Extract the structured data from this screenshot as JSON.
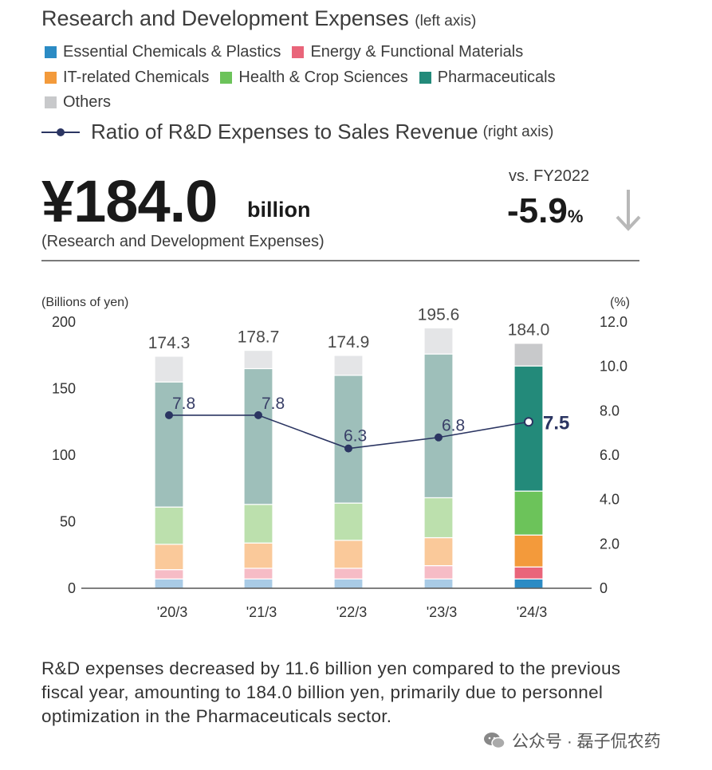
{
  "header": {
    "title": "Research and Development Expenses",
    "title_note": "(left axis)",
    "ratio_label": "Ratio of R&D Expenses to Sales Revenue",
    "ratio_note": "(right axis)"
  },
  "legend": [
    {
      "label": "Essential Chemicals & Plastics",
      "color": "#2b8bc4"
    },
    {
      "label": "Energy & Functional Materials",
      "color": "#e9657a"
    },
    {
      "label": "IT-related Chemicals",
      "color": "#f39a3b"
    },
    {
      "label": "Health & Crop Sciences",
      "color": "#6cc35a"
    },
    {
      "label": "Pharmaceuticals",
      "color": "#238a7a"
    },
    {
      "label": "Others",
      "color": "#c8c9cb"
    }
  ],
  "headline": {
    "value": "¥184.0",
    "unit": "billion",
    "subtitle": "(Research and Development Expenses)",
    "vs_label": "vs. FY2022",
    "change": "-5.9",
    "change_unit": "%",
    "arrow": "down-arrow-icon"
  },
  "chart_data": {
    "type": "bar",
    "stacked": true,
    "categories": [
      "'20/3",
      "'21/3",
      "'22/3",
      "'23/3",
      "'24/3"
    ],
    "left_axis_label": "(Billions of yen)",
    "right_axis_label": "(%)",
    "ylim": [
      0,
      200
    ],
    "yticks": [
      0,
      50,
      100,
      150,
      200
    ],
    "ylim_right": [
      0,
      12
    ],
    "yticks_right": [
      "0",
      "2.0",
      "4.0",
      "6.0",
      "8.0",
      "10.0",
      "12.0"
    ],
    "totals": [
      "174.3",
      "178.7",
      "174.9",
      "195.6",
      "184.0"
    ],
    "series": [
      {
        "name": "Essential Chemicals & Plastics",
        "color": "#2b8bc4",
        "faded": "#a9cbe6",
        "values": [
          7,
          7,
          7,
          7,
          7
        ]
      },
      {
        "name": "Energy & Functional Materials",
        "color": "#e9657a",
        "faded": "#f6bcc6",
        "values": [
          7,
          8,
          8,
          10,
          9
        ]
      },
      {
        "name": "IT-related Chemicals",
        "color": "#f39a3b",
        "faded": "#fac99a",
        "values": [
          19,
          19,
          21,
          21,
          24
        ]
      },
      {
        "name": "Health & Crop Sciences",
        "color": "#6cc35a",
        "faded": "#bce0ad",
        "values": [
          28,
          29,
          28,
          30,
          33
        ]
      },
      {
        "name": "Pharmaceuticals",
        "color": "#238a7a",
        "faded": "#9ebfba",
        "values": [
          94,
          102,
          96,
          108,
          94
        ]
      },
      {
        "name": "Others",
        "color": "#c8c9cb",
        "faded": "#e4e5e7",
        "values": [
          19.3,
          13.7,
          14.9,
          19.6,
          17
        ]
      }
    ],
    "ratio": {
      "name": "Ratio of R&D Expenses to Sales Revenue",
      "values": [
        7.8,
        7.8,
        6.3,
        6.8,
        7.5
      ],
      "labels": [
        "7.8",
        "7.8",
        "6.3",
        "6.8",
        "7.5"
      ],
      "color": "#2b3562"
    },
    "highlight_index": 4
  },
  "note": "R&D expenses decreased by 11.6 billion yen compared to the previous fiscal year, amounting to 184.0 billion yen, primarily due to personnel optimization in the Pharmaceuticals sector.",
  "watermark": {
    "text": "公众号 · 磊子侃农药",
    "icon": "wechat-icon"
  }
}
